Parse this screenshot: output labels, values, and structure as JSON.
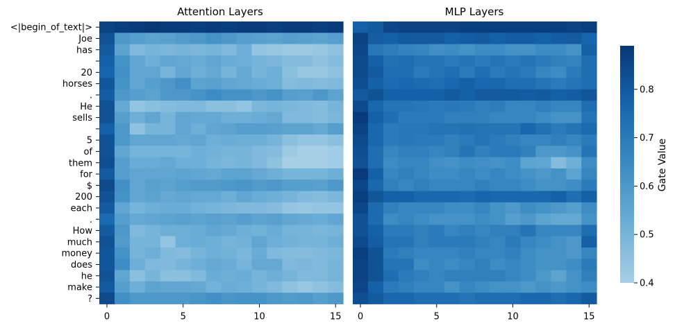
{
  "chart_data": {
    "type": "heatmap",
    "panels": [
      {
        "title": "Attention Layers",
        "x": [
          0,
          1,
          2,
          3,
          4,
          5,
          6,
          7,
          8,
          9,
          10,
          11,
          12,
          13,
          14,
          15
        ],
        "xticks": [
          0,
          5,
          10,
          15
        ],
        "values": [
          [
            0.86,
            0.87,
            0.88,
            0.89,
            0.88,
            0.88,
            0.87,
            0.88,
            0.87,
            0.88,
            0.88,
            0.87,
            0.88,
            0.88,
            0.87,
            0.88
          ],
          [
            0.82,
            0.6,
            0.58,
            0.56,
            0.57,
            0.59,
            0.6,
            0.62,
            0.6,
            0.58,
            0.57,
            0.56,
            0.58,
            0.57,
            0.56,
            0.58
          ],
          [
            0.8,
            0.56,
            0.48,
            0.5,
            0.49,
            0.5,
            0.49,
            0.5,
            0.48,
            0.52,
            0.44,
            0.43,
            0.42,
            0.42,
            0.43,
            0.45
          ],
          [
            0.78,
            0.62,
            0.55,
            0.52,
            0.55,
            0.54,
            0.53,
            0.55,
            0.53,
            0.52,
            0.5,
            0.49,
            0.47,
            0.47,
            0.45,
            0.47
          ],
          [
            0.77,
            0.63,
            0.55,
            0.55,
            0.5,
            0.55,
            0.52,
            0.54,
            0.5,
            0.54,
            0.5,
            0.52,
            0.46,
            0.43,
            0.43,
            0.45
          ],
          [
            0.81,
            0.62,
            0.55,
            0.58,
            0.6,
            0.63,
            0.56,
            0.57,
            0.55,
            0.54,
            0.53,
            0.52,
            0.47,
            0.48,
            0.47,
            0.48
          ],
          [
            0.79,
            0.6,
            0.58,
            0.56,
            0.6,
            0.6,
            0.62,
            0.64,
            0.62,
            0.62,
            0.6,
            0.62,
            0.58,
            0.57,
            0.6,
            0.56
          ],
          [
            0.82,
            0.54,
            0.44,
            0.46,
            0.47,
            0.48,
            0.48,
            0.46,
            0.46,
            0.44,
            0.49,
            0.5,
            0.49,
            0.48,
            0.47,
            0.5
          ],
          [
            0.82,
            0.58,
            0.52,
            0.55,
            0.5,
            0.55,
            0.54,
            0.54,
            0.52,
            0.52,
            0.53,
            0.54,
            0.48,
            0.48,
            0.47,
            0.49
          ],
          [
            0.78,
            0.6,
            0.45,
            0.5,
            0.5,
            0.55,
            0.52,
            0.55,
            0.56,
            0.58,
            0.58,
            0.57,
            0.56,
            0.56,
            0.54,
            0.58
          ],
          [
            0.82,
            0.6,
            0.55,
            0.55,
            0.55,
            0.54,
            0.55,
            0.52,
            0.53,
            0.52,
            0.52,
            0.5,
            0.46,
            0.44,
            0.44,
            0.46
          ],
          [
            0.82,
            0.55,
            0.5,
            0.5,
            0.5,
            0.5,
            0.52,
            0.51,
            0.5,
            0.5,
            0.48,
            0.47,
            0.42,
            0.4,
            0.4,
            0.41
          ],
          [
            0.83,
            0.58,
            0.53,
            0.53,
            0.54,
            0.52,
            0.52,
            0.5,
            0.49,
            0.5,
            0.48,
            0.45,
            0.4,
            0.4,
            0.4,
            0.41
          ],
          [
            0.8,
            0.58,
            0.55,
            0.55,
            0.55,
            0.56,
            0.55,
            0.54,
            0.56,
            0.56,
            0.54,
            0.52,
            0.5,
            0.5,
            0.5,
            0.52
          ],
          [
            0.84,
            0.63,
            0.55,
            0.57,
            0.56,
            0.58,
            0.59,
            0.59,
            0.6,
            0.61,
            0.59,
            0.6,
            0.58,
            0.58,
            0.57,
            0.6
          ],
          [
            0.82,
            0.62,
            0.55,
            0.56,
            0.54,
            0.55,
            0.54,
            0.54,
            0.52,
            0.55,
            0.53,
            0.52,
            0.5,
            0.48,
            0.47,
            0.49
          ],
          [
            0.8,
            0.55,
            0.5,
            0.52,
            0.53,
            0.53,
            0.51,
            0.5,
            0.49,
            0.48,
            0.48,
            0.47,
            0.44,
            0.43,
            0.44,
            0.44
          ],
          [
            0.75,
            0.58,
            0.54,
            0.55,
            0.56,
            0.57,
            0.56,
            0.57,
            0.56,
            0.58,
            0.56,
            0.57,
            0.55,
            0.54,
            0.53,
            0.55
          ],
          [
            0.8,
            0.6,
            0.48,
            0.5,
            0.52,
            0.52,
            0.53,
            0.55,
            0.54,
            0.52,
            0.51,
            0.53,
            0.5,
            0.5,
            0.49,
            0.5
          ],
          [
            0.82,
            0.59,
            0.5,
            0.5,
            0.44,
            0.52,
            0.53,
            0.52,
            0.5,
            0.51,
            0.55,
            0.52,
            0.51,
            0.5,
            0.5,
            0.52
          ],
          [
            0.81,
            0.62,
            0.5,
            0.52,
            0.48,
            0.47,
            0.5,
            0.52,
            0.51,
            0.49,
            0.53,
            0.48,
            0.47,
            0.47,
            0.48,
            0.49
          ],
          [
            0.81,
            0.64,
            0.52,
            0.48,
            0.48,
            0.5,
            0.52,
            0.54,
            0.53,
            0.5,
            0.54,
            0.54,
            0.48,
            0.49,
            0.48,
            0.5
          ],
          [
            0.82,
            0.55,
            0.46,
            0.5,
            0.46,
            0.46,
            0.48,
            0.53,
            0.52,
            0.53,
            0.5,
            0.52,
            0.5,
            0.48,
            0.48,
            0.5
          ],
          [
            0.8,
            0.58,
            0.52,
            0.56,
            0.55,
            0.55,
            0.54,
            0.51,
            0.53,
            0.52,
            0.5,
            0.48,
            0.45,
            0.43,
            0.45,
            0.47
          ],
          [
            0.84,
            0.63,
            0.6,
            0.6,
            0.6,
            0.6,
            0.61,
            0.63,
            0.61,
            0.62,
            0.62,
            0.6,
            0.59,
            0.6,
            0.58,
            0.6
          ]
        ]
      },
      {
        "title": "MLP Layers",
        "x": [
          0,
          1,
          2,
          3,
          4,
          5,
          6,
          7,
          8,
          9,
          10,
          11,
          12,
          13,
          14,
          15
        ],
        "xticks": [
          0,
          5,
          10,
          15
        ],
        "values": [
          [
            0.78,
            0.8,
            0.85,
            0.86,
            0.86,
            0.86,
            0.86,
            0.87,
            0.87,
            0.87,
            0.87,
            0.87,
            0.87,
            0.87,
            0.86,
            0.87
          ],
          [
            0.86,
            0.79,
            0.78,
            0.8,
            0.8,
            0.8,
            0.78,
            0.79,
            0.8,
            0.78,
            0.79,
            0.79,
            0.78,
            0.79,
            0.8,
            0.77
          ],
          [
            0.85,
            0.71,
            0.69,
            0.67,
            0.66,
            0.63,
            0.64,
            0.62,
            0.64,
            0.64,
            0.62,
            0.62,
            0.64,
            0.64,
            0.62,
            0.78
          ],
          [
            0.84,
            0.78,
            0.73,
            0.74,
            0.72,
            0.72,
            0.7,
            0.72,
            0.7,
            0.72,
            0.7,
            0.72,
            0.7,
            0.68,
            0.67,
            0.74
          ],
          [
            0.84,
            0.8,
            0.74,
            0.74,
            0.7,
            0.72,
            0.74,
            0.7,
            0.74,
            0.7,
            0.72,
            0.7,
            0.66,
            0.64,
            0.7,
            0.74
          ],
          [
            0.83,
            0.78,
            0.75,
            0.76,
            0.75,
            0.74,
            0.76,
            0.78,
            0.76,
            0.76,
            0.74,
            0.74,
            0.72,
            0.7,
            0.72,
            0.74
          ],
          [
            0.8,
            0.82,
            0.78,
            0.78,
            0.78,
            0.78,
            0.8,
            0.78,
            0.8,
            0.8,
            0.8,
            0.79,
            0.8,
            0.78,
            0.79,
            0.81
          ],
          [
            0.84,
            0.76,
            0.72,
            0.72,
            0.71,
            0.7,
            0.71,
            0.7,
            0.68,
            0.69,
            0.66,
            0.66,
            0.68,
            0.66,
            0.66,
            0.74
          ],
          [
            0.88,
            0.78,
            0.74,
            0.7,
            0.7,
            0.7,
            0.68,
            0.68,
            0.68,
            0.66,
            0.66,
            0.66,
            0.64,
            0.62,
            0.62,
            0.72
          ],
          [
            0.86,
            0.76,
            0.7,
            0.71,
            0.71,
            0.72,
            0.72,
            0.73,
            0.72,
            0.72,
            0.72,
            0.76,
            0.73,
            0.7,
            0.72,
            0.75
          ],
          [
            0.84,
            0.76,
            0.7,
            0.71,
            0.7,
            0.7,
            0.68,
            0.7,
            0.72,
            0.7,
            0.68,
            0.66,
            0.66,
            0.68,
            0.66,
            0.7
          ],
          [
            0.83,
            0.74,
            0.66,
            0.68,
            0.68,
            0.66,
            0.68,
            0.72,
            0.68,
            0.7,
            0.7,
            0.68,
            0.6,
            0.6,
            0.62,
            0.72
          ],
          [
            0.82,
            0.74,
            0.64,
            0.66,
            0.66,
            0.63,
            0.62,
            0.64,
            0.63,
            0.62,
            0.64,
            0.56,
            0.55,
            0.47,
            0.52,
            0.64
          ],
          [
            0.88,
            0.78,
            0.66,
            0.68,
            0.66,
            0.64,
            0.64,
            0.66,
            0.64,
            0.66,
            0.64,
            0.62,
            0.6,
            0.62,
            0.56,
            0.66
          ],
          [
            0.85,
            0.76,
            0.68,
            0.66,
            0.68,
            0.66,
            0.66,
            0.66,
            0.68,
            0.66,
            0.66,
            0.64,
            0.62,
            0.62,
            0.64,
            0.7
          ],
          [
            0.87,
            0.81,
            0.78,
            0.78,
            0.76,
            0.76,
            0.76,
            0.75,
            0.77,
            0.76,
            0.76,
            0.76,
            0.76,
            0.78,
            0.74,
            0.78
          ],
          [
            0.85,
            0.75,
            0.68,
            0.66,
            0.66,
            0.66,
            0.64,
            0.64,
            0.66,
            0.62,
            0.6,
            0.64,
            0.62,
            0.6,
            0.58,
            0.64
          ],
          [
            0.82,
            0.75,
            0.64,
            0.66,
            0.64,
            0.62,
            0.62,
            0.62,
            0.64,
            0.62,
            0.58,
            0.6,
            0.56,
            0.54,
            0.54,
            0.62
          ],
          [
            0.82,
            0.78,
            0.7,
            0.7,
            0.68,
            0.7,
            0.66,
            0.68,
            0.66,
            0.68,
            0.68,
            0.72,
            0.66,
            0.66,
            0.66,
            0.74
          ],
          [
            0.84,
            0.79,
            0.72,
            0.72,
            0.68,
            0.7,
            0.7,
            0.7,
            0.68,
            0.66,
            0.7,
            0.66,
            0.64,
            0.62,
            0.6,
            0.78
          ],
          [
            0.87,
            0.82,
            0.7,
            0.68,
            0.66,
            0.66,
            0.66,
            0.68,
            0.66,
            0.66,
            0.68,
            0.64,
            0.62,
            0.62,
            0.6,
            0.66
          ],
          [
            0.86,
            0.82,
            0.72,
            0.72,
            0.64,
            0.66,
            0.64,
            0.66,
            0.68,
            0.64,
            0.66,
            0.64,
            0.62,
            0.62,
            0.64,
            0.7
          ],
          [
            0.86,
            0.82,
            0.74,
            0.7,
            0.68,
            0.66,
            0.68,
            0.68,
            0.68,
            0.68,
            0.66,
            0.64,
            0.6,
            0.56,
            0.62,
            0.68
          ],
          [
            0.85,
            0.78,
            0.7,
            0.68,
            0.66,
            0.66,
            0.62,
            0.66,
            0.64,
            0.62,
            0.62,
            0.6,
            0.62,
            0.6,
            0.62,
            0.64
          ],
          [
            0.83,
            0.8,
            0.76,
            0.76,
            0.74,
            0.74,
            0.74,
            0.72,
            0.74,
            0.74,
            0.74,
            0.76,
            0.76,
            0.74,
            0.76,
            0.8
          ]
        ]
      }
    ],
    "y_tokens": [
      "<|begin_of_text|>",
      "Joe",
      "has",
      "",
      "20",
      "horses",
      ".",
      "He",
      "sells",
      "",
      "5",
      "of",
      "them",
      "for",
      "$",
      "200",
      "each",
      ".",
      "How",
      "much",
      "money",
      "does",
      "he",
      "make",
      "?"
    ],
    "colorbar": {
      "label": "Gate Value",
      "range": [
        0.4,
        0.89
      ],
      "ticks": [
        0.4,
        0.5,
        0.6,
        0.7,
        0.8
      ],
      "colormap": "Blues",
      "color_low": "#a6cfe6",
      "color_high": "#083776"
    }
  }
}
